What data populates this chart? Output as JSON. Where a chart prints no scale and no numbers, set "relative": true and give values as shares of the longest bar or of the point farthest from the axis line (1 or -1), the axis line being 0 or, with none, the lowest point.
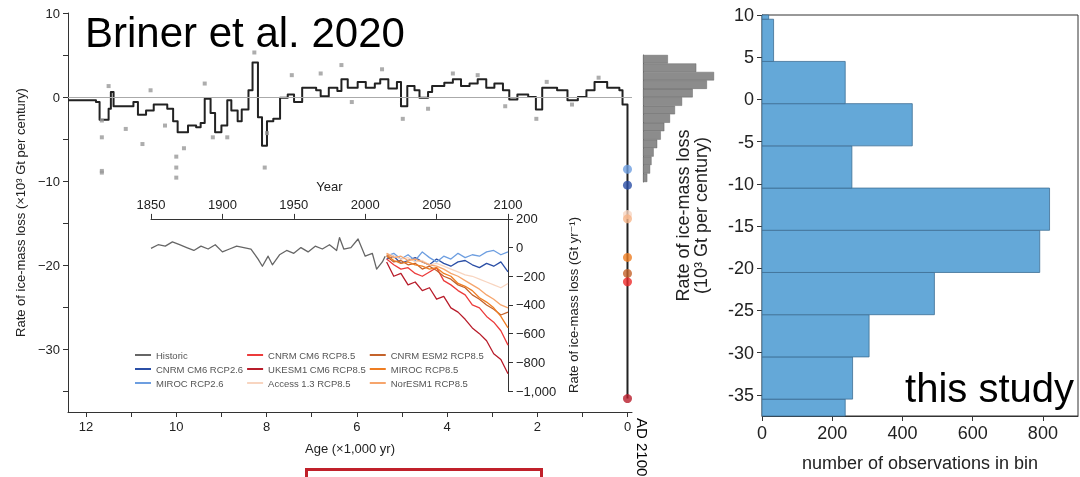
{
  "chart_data": [
    {
      "type": "step",
      "title": "Briner et al. 2020",
      "xlabel": "Age (×1,000 yr)",
      "ylabel": "Rate of ice-mass loss (×10³ Gt per century)",
      "xlim": [
        12.4,
        -0.1
      ],
      "xticks": [
        12,
        {
          "value": 11,
          "label": null
        },
        10,
        {
          "value": 9,
          "label": null
        },
        8,
        {
          "value": 7,
          "label": null
        },
        6,
        {
          "value": 5,
          "label": null
        },
        4,
        {
          "value": 3,
          "label": null
        },
        2,
        {
          "value": 1,
          "label": null
        },
        0
      ],
      "ylim": [
        -37.5,
        10
      ],
      "yticks": [
        10,
        {
          "value": 5,
          "label": null
        },
        0,
        {
          "value": -5,
          "label": null
        },
        {
          "value": -10,
          "label": "−10"
        },
        {
          "value": -15,
          "label": null
        },
        {
          "value": -20,
          "label": "−20"
        },
        {
          "value": -25,
          "label": null
        },
        {
          "value": -30,
          "label": "−30"
        },
        {
          "value": -35,
          "label": null
        }
      ],
      "grid": false,
      "ref_lines": [
        {
          "axis": "y",
          "value": 0,
          "color": "#aaaaaa"
        }
      ],
      "annotations": [
        "AD 2100"
      ],
      "series": [
        {
          "color": "#222222",
          "x": [
            12.4,
            11.78,
            11.7,
            11.5,
            11.45,
            11.39,
            10.95,
            10.85,
            10.67,
            10.5,
            10.2,
            10.07,
            9.97,
            9.74,
            9.56,
            9.46,
            9.37,
            9.24,
            9.14,
            9.0,
            8.87,
            8.78,
            8.64,
            8.55,
            8.4,
            8.31,
            8.19,
            8.1,
            7.99,
            7.85,
            7.7,
            7.53,
            7.39,
            7.21,
            6.9,
            6.8,
            6.62,
            6.43,
            6.34,
            6.2,
            5.98,
            5.8,
            5.6,
            5.48,
            5.3,
            5.11,
            5.02,
            4.88,
            4.72,
            4.61,
            4.42,
            4.33,
            4.06,
            3.87,
            3.69,
            3.5,
            3.32,
            3.13,
            2.95,
            2.76,
            2.62,
            2.44,
            2.2,
            2.03,
            1.89,
            1.56,
            1.33,
            1.1,
            0.91,
            0.73,
            0.45,
            0.18,
            0.11,
            0,
            0
          ],
          "values": [
            -0.4,
            -0.6,
            -2.7,
            -1.4,
            0.6,
            -1.1,
            -0.6,
            -2.1,
            -1.6,
            -0.9,
            -1.4,
            -2.9,
            -4.2,
            -3.4,
            -3.6,
            -3.1,
            -0.2,
            -1.9,
            -4.2,
            -3.4,
            -0.4,
            -1.6,
            -2.9,
            -1.5,
            0.8,
            4.1,
            -2.4,
            -5.8,
            -2.9,
            -2.6,
            -0.1,
            0.3,
            -0.6,
            1.1,
            0.8,
            0.1,
            1.1,
            0.7,
            2.1,
            1.1,
            1.8,
            1.1,
            1.6,
            2.1,
            1.0,
            1.8,
            -1.1,
            1.3,
            0.8,
            -0.1,
            0.6,
            1.3,
            1.7,
            2.1,
            1.3,
            1.6,
            2.1,
            1.1,
            1.6,
            0.8,
            -0.3,
            0.3,
            0.0,
            -1.5,
            1.1,
            0.8,
            -0.4,
            0.0,
            0.8,
            1.8,
            1.1,
            0.8,
            -0.9,
            -1.1,
            -35.9
          ]
        },
        {
          "type": "scatter",
          "marker": "square",
          "color": "#999999",
          "x": [
            11.65,
            11.65,
            11.65,
            11.65,
            11.5,
            11.12,
            10.75,
            10.57,
            10.25,
            10.0,
            10.0,
            10.0,
            9.83,
            9.37,
            9.19,
            8.87,
            8.27,
            8.04,
            7.99,
            7.44,
            6.8,
            6.34,
            6.11,
            5.44,
            4.98,
            4.42,
            3.87,
            3.32,
            2.71,
            2.02,
            1.79,
            1.23,
            0.64
          ],
          "values": [
            -2.8,
            -4.8,
            -8.8,
            -9.0,
            1.3,
            -3.8,
            -5.6,
            0.8,
            -3.4,
            -7.1,
            -8.4,
            -9.6,
            -6.1,
            1.6,
            -4.8,
            -4.8,
            5.3,
            -8.4,
            -4.3,
            2.6,
            2.8,
            3.8,
            -0.6,
            3.3,
            -2.6,
            -1.4,
            2.8,
            2.6,
            -1.1,
            -2.6,
            1.8,
            -0.9,
            2.3
          ]
        },
        {
          "type": "scatter",
          "marker": "circle",
          "colors": [
            "#6d9ee0",
            "#2b4fa6",
            "#f8d5c0",
            "#f6b488",
            "#ee7d22",
            "#c4632b",
            "#ec2a2a",
            "#b81c2a"
          ],
          "x": [
            0,
            0,
            0,
            0,
            0,
            0,
            0,
            0
          ],
          "values": [
            -8.6,
            -10.5,
            -14.0,
            -14.5,
            -19.1,
            -21.0,
            -22.0,
            -35.9
          ]
        }
      ]
    },
    {
      "type": "bar",
      "orientation": "horizontal",
      "relative": true,
      "color": "#8c8c8c",
      "categories": [
        null,
        null,
        null,
        null,
        null,
        null,
        null,
        null,
        null,
        null,
        null,
        null,
        null,
        null,
        null
      ],
      "values": [
        0.35,
        0.75,
        1.0,
        0.9,
        0.7,
        0.55,
        0.45,
        0.38,
        0.3,
        0.25,
        0.2,
        0.15,
        0.12,
        0.1,
        0.06
      ]
    },
    {
      "type": "line",
      "xlabel": "Year",
      "ylabel": "Rate of ice-mass loss (Gt yr⁻¹)",
      "xlim": [
        1850,
        2100
      ],
      "xticks": [
        1850,
        1900,
        1950,
        2000,
        2050,
        2100
      ],
      "ylim": [
        -1000,
        200
      ],
      "yticks": [
        200,
        0,
        {
          "value": -200,
          "label": "−200"
        },
        {
          "value": -400,
          "label": "−400"
        },
        {
          "value": -600,
          "label": "−600"
        },
        {
          "value": -800,
          "label": "−800"
        },
        {
          "value": -1000,
          "label": "−1,000"
        }
      ],
      "grid": false,
      "legend": "bottom left",
      "series": [
        {
          "name": "Historic",
          "color": "#666666",
          "x": [
            1850,
            1855,
            1860,
            1865,
            1870,
            1875,
            1880,
            1885,
            1890,
            1895,
            1900,
            1905,
            1910,
            1915,
            1920,
            1925,
            1928,
            1932,
            1935,
            1940,
            1945,
            1950,
            1955,
            1960,
            1965,
            1970,
            1975,
            1980,
            1982,
            1985,
            1990,
            1995,
            2000,
            2005,
            2008,
            2012,
            2014
          ],
          "values": [
            -5,
            20,
            10,
            40,
            20,
            0,
            -20,
            10,
            -10,
            20,
            -30,
            -10,
            10,
            0,
            -10,
            -80,
            -130,
            -60,
            -120,
            -50,
            -20,
            -40,
            0,
            -30,
            10,
            -10,
            20,
            -20,
            70,
            -10,
            0,
            60,
            -60,
            -40,
            -150,
            -100,
            -60
          ]
        },
        {
          "name": "CNRM CM6 RCP2.6",
          "color": "#2b4fa6",
          "x": [
            2015,
            2020,
            2025,
            2030,
            2035,
            2040,
            2045,
            2050,
            2055,
            2060,
            2065,
            2070,
            2075,
            2080,
            2085,
            2090,
            2095,
            2100
          ],
          "values": [
            -80,
            -60,
            -110,
            -90,
            -70,
            -100,
            -120,
            -80,
            -110,
            -130,
            -100,
            -90,
            -120,
            -140,
            -110,
            -130,
            -100,
            -170
          ]
        },
        {
          "name": "MIROC RCP2.6",
          "color": "#6d9ee0",
          "x": [
            2015,
            2020,
            2025,
            2030,
            2035,
            2040,
            2045,
            2050,
            2055,
            2060,
            2065,
            2070,
            2075,
            2080,
            2085,
            2090,
            2095,
            2100
          ],
          "values": [
            -60,
            -40,
            -80,
            -50,
            -90,
            -30,
            -70,
            -100,
            -60,
            -80,
            -40,
            -70,
            -50,
            -60,
            -30,
            -20,
            -50,
            -30
          ]
        },
        {
          "name": "CNRM CM6 RCP8.5",
          "color": "#ec3b3b",
          "x": [
            2015,
            2020,
            2025,
            2030,
            2035,
            2040,
            2045,
            2050,
            2055,
            2060,
            2065,
            2070,
            2075,
            2080,
            2085,
            2090,
            2095,
            2100
          ],
          "values": [
            -80,
            -120,
            -150,
            -140,
            -180,
            -200,
            -170,
            -140,
            -230,
            -260,
            -300,
            -330,
            -400,
            -420,
            -480,
            -520,
            -580,
            -680
          ]
        },
        {
          "name": "UKESM1 CM6 RCP8.5",
          "color": "#b81c2a",
          "x": [
            2015,
            2020,
            2025,
            2030,
            2035,
            2040,
            2045,
            2050,
            2055,
            2060,
            2065,
            2070,
            2075,
            2080,
            2085,
            2090,
            2095,
            2100
          ],
          "values": [
            -100,
            -200,
            -180,
            -260,
            -240,
            -300,
            -280,
            -360,
            -340,
            -420,
            -450,
            -500,
            -560,
            -600,
            -650,
            -740,
            -780,
            -880
          ]
        },
        {
          "name": "Access 1.3 RCP8.5",
          "color": "#f8d5c0",
          "x": [
            2015,
            2020,
            2025,
            2030,
            2035,
            2040,
            2045,
            2050,
            2055,
            2060,
            2065,
            2070,
            2075,
            2080,
            2085,
            2090,
            2095,
            2100
          ],
          "values": [
            -40,
            -60,
            -80,
            -70,
            -100,
            -90,
            -120,
            -110,
            -130,
            -150,
            -170,
            -190,
            -200,
            -220,
            -240,
            -260,
            -280,
            -250
          ]
        },
        {
          "name": "CNRM ESM2 RCP8.5",
          "color": "#c4632b",
          "x": [
            2015,
            2020,
            2025,
            2030,
            2035,
            2040,
            2045,
            2050,
            2055,
            2060,
            2065,
            2070,
            2075,
            2080,
            2085,
            2090,
            2095,
            2100
          ],
          "values": [
            -60,
            -100,
            -90,
            -120,
            -110,
            -150,
            -130,
            -160,
            -200,
            -220,
            -260,
            -280,
            -330,
            -360,
            -400,
            -430,
            -470,
            -450
          ]
        },
        {
          "name": "MIROC RCP8.5",
          "color": "#ee7d22",
          "x": [
            2015,
            2020,
            2025,
            2030,
            2035,
            2040,
            2045,
            2050,
            2055,
            2060,
            2065,
            2070,
            2075,
            2080,
            2085,
            2090,
            2095,
            2100
          ],
          "values": [
            -50,
            -90,
            -110,
            -100,
            -120,
            -130,
            -150,
            -140,
            -180,
            -200,
            -250,
            -270,
            -300,
            -350,
            -380,
            -420,
            -480,
            -560
          ]
        },
        {
          "name": "NorESM1 RCP8.5",
          "color": "#f6a56c",
          "x": [
            2015,
            2020,
            2025,
            2030,
            2035,
            2040,
            2045,
            2050,
            2055,
            2060,
            2065,
            2070,
            2075,
            2080,
            2085,
            2090,
            2095,
            2100
          ],
          "values": [
            -40,
            -70,
            -60,
            -90,
            -80,
            -100,
            -120,
            -130,
            -150,
            -180,
            -200,
            -230,
            -260,
            -290,
            -330,
            -360,
            -400,
            -420
          ]
        }
      ]
    },
    {
      "type": "histogram",
      "orientation": "horizontal",
      "color": "#64a8d8",
      "xlabel": "number of observations in bin",
      "ylabel": "Rate of ice-mass loss\n(10³ Gt per century)",
      "xlim": [
        0,
        900
      ],
      "xticks": [
        0,
        200,
        400,
        600,
        800
      ],
      "ylim": [
        -37.5,
        10
      ],
      "yticks": [
        10,
        5,
        0,
        -5,
        -10,
        -15,
        -20,
        -25,
        -30,
        -35
      ],
      "grid": false,
      "annotations": [
        "this study"
      ],
      "bins": [
        -37.5,
        -35.5,
        -30.5,
        -25.5,
        -20.5,
        -15.5,
        -10.5,
        -5.5,
        -0.5,
        4.5,
        9.5,
        10
      ],
      "values": [
        237,
        258,
        305,
        491,
        791,
        819,
        256,
        428,
        237,
        33,
        19
      ]
    }
  ]
}
